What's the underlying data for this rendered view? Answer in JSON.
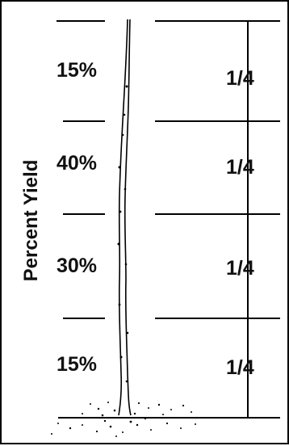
{
  "axis_title": "Percent Yield",
  "sections": [
    {
      "percent": "15%",
      "fraction": "1/4"
    },
    {
      "percent": "40%",
      "fraction": "1/4"
    },
    {
      "percent": "30%",
      "fraction": "1/4"
    },
    {
      "percent": "15%",
      "fraction": "1/4"
    }
  ],
  "colors": {
    "ink": "#000000",
    "background": "#ffffff"
  }
}
